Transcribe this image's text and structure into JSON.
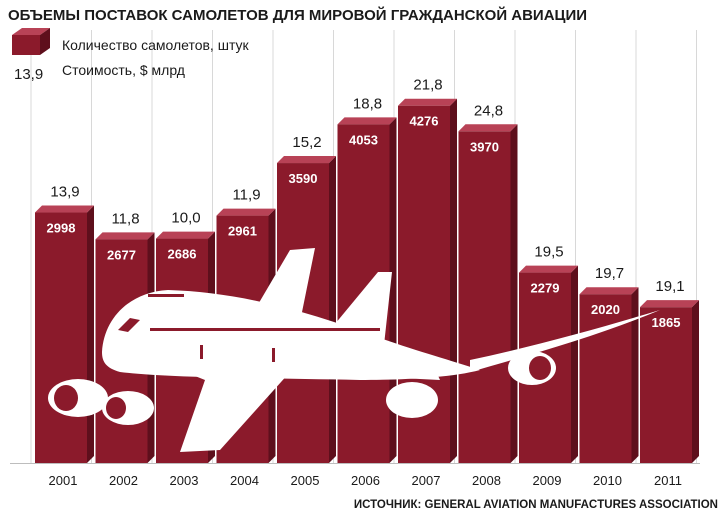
{
  "title": "ОБЪЕМЫ ПОСТАВОК САМОЛЕТОВ ДЛЯ МИРОВОЙ ГРАЖДАНСКОЙ АВИАЦИИ",
  "legend": {
    "count_label": "Количество самолетов, штук",
    "value_label": "Стоимость, $ млрд",
    "value_sample": "13,9"
  },
  "source": "ИСТОЧНИК: GENERAL AVIATION MANUFACTURES ASSOCIATION",
  "colors": {
    "bar_front": "#8b1a2b",
    "bar_top": "#b84256",
    "bar_side": "#5e0f1c",
    "grid": "#d8d8d8",
    "plane": "#ffffff"
  },
  "chart_data": {
    "type": "bar",
    "categories": [
      "2001",
      "2002",
      "2003",
      "2004",
      "2005",
      "2006",
      "2007",
      "2008",
      "2009",
      "2010",
      "2011"
    ],
    "series": [
      {
        "name": "Количество самолетов, штук",
        "values": [
          2998,
          2677,
          2686,
          2961,
          3590,
          4053,
          4276,
          3970,
          2279,
          2020,
          1865
        ],
        "labels": [
          "2998",
          "2677",
          "2686",
          "2961",
          "3590",
          "4053",
          "4276",
          "3970",
          "2279",
          "2020",
          "1865"
        ]
      },
      {
        "name": "Стоимость, $ млрд",
        "values": [
          13.9,
          11.8,
          10.0,
          11.9,
          15.2,
          18.8,
          21.8,
          24.8,
          19.5,
          19.7,
          19.1
        ],
        "labels": [
          "13,9",
          "11,8",
          "10,0",
          "11,9",
          "15,2",
          "18,8",
          "21,8",
          "24,8",
          "19,5",
          "19,7",
          "19,1"
        ]
      }
    ],
    "ylim": [
      0,
      4500
    ],
    "grid": true,
    "legend_position": "top-left"
  }
}
